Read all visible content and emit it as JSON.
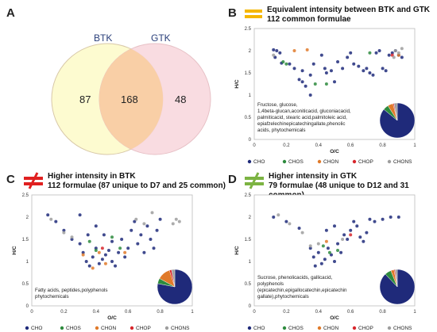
{
  "panelA": {
    "label": "A",
    "venn": {
      "left_name": "BTK",
      "right_name": "GTK",
      "left_only": "87",
      "both": "168",
      "right_only": "48",
      "colors": {
        "left": "#fdfbd0",
        "right": "#f9d6dc",
        "overlap": "#f9cfa6",
        "edge": "#d8b7a0"
      }
    }
  },
  "panelB": {
    "label": "B",
    "title": "Equivalent intensity between BTK and GTK",
    "subtitle": "112 common formulae",
    "icon": "equal-sign-icon",
    "icon_color": "#f5b700",
    "annotation": "Fructose, glucose, 1,4beta-glucan,aconiticacid, gluconiacacid, palmiticacid, stearic acid,palmitoleic acid, epiafzelechinepicatechingallate,phenolic acids, phytochemicals",
    "pie": [
      0.86,
      0.05,
      0.05,
      0.01,
      0.03
    ]
  },
  "panelC": {
    "label": "C",
    "title": "Higher intensity in BTK",
    "subtitle": "112 formulae (87 unique to D7 and 25 common)",
    "icon": "not-equal-sign-icon",
    "icon_color": "#e02020",
    "annotation": "Fatty acids, peptides,polyphenols phytochemicals",
    "pie": [
      0.78,
      0.05,
      0.12,
      0.02,
      0.03
    ]
  },
  "panelD": {
    "label": "D",
    "title": "Higher intensity in GTK",
    "subtitle": "79 formulae (48 unique to D12 and 31 common)",
    "icon": "not-equal-sign-icon",
    "icon_color": "#7cb342",
    "annotation": "Sucrose, phenolicacids, gallicacid, polyphenols (epicatechin,epigallocatechin,epicatechin gallate),phytochemicals",
    "pie": [
      0.88,
      0.06,
      0.03,
      0.01,
      0.02
    ]
  },
  "axes": {
    "xlabel": "O/C",
    "ylabel": "H/C",
    "xticks": [
      "0",
      "0.2",
      "0.4",
      "0.6",
      "0.8",
      "1"
    ],
    "yticks": [
      "0",
      "0.5",
      "1",
      "1.5",
      "2",
      "2.5"
    ],
    "xlim": [
      0,
      1
    ],
    "ylim": [
      0,
      2.5
    ]
  },
  "legend": [
    {
      "name": "CHO",
      "color": "#1f2a7a"
    },
    {
      "name": "CHOS",
      "color": "#2e8b3e"
    },
    {
      "name": "CHON",
      "color": "#e07a2a"
    },
    {
      "name": "CHOP",
      "color": "#d8272d"
    },
    {
      "name": "CHONS",
      "color": "#9e9e9e"
    }
  ],
  "chart_data": [
    {
      "type": "scatter",
      "title": "Equivalent intensity between BTK and GTK",
      "xlabel": "O/C",
      "ylabel": "H/C",
      "xlim": [
        0,
        1
      ],
      "ylim": [
        0,
        2.5
      ],
      "series": [
        {
          "name": "CHO",
          "points": [
            [
              0.12,
              2.02
            ],
            [
              0.14,
              2.0
            ],
            [
              0.16,
              1.95
            ],
            [
              0.13,
              1.85
            ],
            [
              0.17,
              1.72
            ],
            [
              0.22,
              1.7
            ],
            [
              0.25,
              1.6
            ],
            [
              0.3,
              1.55
            ],
            [
              0.28,
              1.35
            ],
            [
              0.32,
              1.2
            ],
            [
              0.35,
              1.45
            ],
            [
              0.37,
              1.7
            ],
            [
              0.42,
              1.9
            ],
            [
              0.44,
              1.6
            ],
            [
              0.45,
              1.5
            ],
            [
              0.48,
              1.55
            ],
            [
              0.5,
              1.3
            ],
            [
              0.52,
              1.75
            ],
            [
              0.55,
              1.6
            ],
            [
              0.58,
              1.85
            ],
            [
              0.6,
              1.95
            ],
            [
              0.62,
              1.7
            ],
            [
              0.65,
              1.65
            ],
            [
              0.68,
              1.55
            ],
            [
              0.7,
              1.6
            ],
            [
              0.72,
              1.5
            ],
            [
              0.74,
              1.45
            ],
            [
              0.76,
              1.95
            ],
            [
              0.78,
              2.0
            ],
            [
              0.8,
              1.6
            ],
            [
              0.82,
              1.55
            ],
            [
              0.84,
              1.9
            ],
            [
              0.86,
              1.95
            ],
            [
              0.88,
              2.0
            ],
            [
              0.9,
              1.9
            ],
            [
              0.92,
              1.85
            ],
            [
              0.3,
              1.3
            ],
            [
              0.35,
              1.0
            ]
          ]
        },
        {
          "name": "CHOS",
          "points": [
            [
              0.18,
              1.75
            ],
            [
              0.2,
              1.7
            ],
            [
              0.38,
              1.25
            ],
            [
              0.45,
              1.25
            ],
            [
              0.72,
              1.95
            ]
          ]
        },
        {
          "name": "CHON",
          "points": [
            [
              0.25,
              2.0
            ],
            [
              0.33,
              2.02
            ],
            [
              0.9,
              1.9
            ]
          ]
        },
        {
          "name": "CHOP",
          "points": [
            [
              0.86,
              1.9
            ]
          ]
        },
        {
          "name": "CHONS",
          "points": [
            [
              0.12,
              1.9
            ],
            [
              0.88,
              2.0
            ],
            [
              0.9,
              1.95
            ],
            [
              0.92,
              2.05
            ],
            [
              0.87,
              1.85
            ]
          ]
        }
      ]
    },
    {
      "type": "scatter",
      "title": "Higher intensity in BTK",
      "xlabel": "O/C",
      "ylabel": "H/C",
      "xlim": [
        0,
        1
      ],
      "ylim": [
        0,
        2.5
      ],
      "series": [
        {
          "name": "CHO",
          "points": [
            [
              0.1,
              2.05
            ],
            [
              0.15,
              1.9
            ],
            [
              0.2,
              1.7
            ],
            [
              0.25,
              1.5
            ],
            [
              0.3,
              1.4
            ],
            [
              0.32,
              1.2
            ],
            [
              0.34,
              1.0
            ],
            [
              0.36,
              0.9
            ],
            [
              0.38,
              1.1
            ],
            [
              0.4,
              1.3
            ],
            [
              0.42,
              0.95
            ],
            [
              0.44,
              1.05
            ],
            [
              0.46,
              1.15
            ],
            [
              0.48,
              1.25
            ],
            [
              0.5,
              1.0
            ],
            [
              0.52,
              0.9
            ],
            [
              0.54,
              1.2
            ],
            [
              0.56,
              1.5
            ],
            [
              0.58,
              1.1
            ],
            [
              0.6,
              1.3
            ],
            [
              0.62,
              1.7
            ],
            [
              0.64,
              1.9
            ],
            [
              0.66,
              1.4
            ],
            [
              0.68,
              1.6
            ],
            [
              0.7,
              1.2
            ],
            [
              0.72,
              1.8
            ],
            [
              0.74,
              1.5
            ],
            [
              0.76,
              1.3
            ],
            [
              0.78,
              1.7
            ],
            [
              0.8,
              1.95
            ],
            [
              0.3,
              2.05
            ],
            [
              0.35,
              1.6
            ],
            [
              0.4,
              1.8
            ],
            [
              0.45,
              1.6
            ],
            [
              0.5,
              1.45
            ]
          ]
        },
        {
          "name": "CHOS",
          "points": [
            [
              0.36,
              1.45
            ],
            [
              0.5,
              1.55
            ],
            [
              0.4,
              1.25
            ],
            [
              0.55,
              1.3
            ]
          ]
        },
        {
          "name": "CHON",
          "points": [
            [
              0.32,
              1.15
            ],
            [
              0.42,
              1.2
            ],
            [
              0.46,
              0.95
            ],
            [
              0.58,
              1.2
            ],
            [
              0.38,
              0.85
            ]
          ]
        },
        {
          "name": "CHOP",
          "points": [
            [
              0.44,
              1.3
            ]
          ]
        },
        {
          "name": "CHONS",
          "points": [
            [
              0.12,
              1.95
            ],
            [
              0.2,
              1.65
            ],
            [
              0.25,
              1.55
            ],
            [
              0.65,
              1.95
            ],
            [
              0.7,
              1.85
            ],
            [
              0.75,
              2.1
            ],
            [
              0.9,
              1.95
            ],
            [
              0.88,
              1.85
            ],
            [
              0.92,
              1.9
            ]
          ]
        }
      ]
    },
    {
      "type": "scatter",
      "title": "Higher intensity in GTK",
      "xlabel": "O/C",
      "ylabel": "H/C",
      "xlim": [
        0,
        1
      ],
      "ylim": [
        0,
        2.5
      ],
      "series": [
        {
          "name": "CHO",
          "points": [
            [
              0.12,
              2.0
            ],
            [
              0.2,
              1.9
            ],
            [
              0.28,
              1.75
            ],
            [
              0.35,
              1.3
            ],
            [
              0.37,
              1.1
            ],
            [
              0.4,
              1.2
            ],
            [
              0.42,
              0.95
            ],
            [
              0.44,
              1.05
            ],
            [
              0.46,
              1.3
            ],
            [
              0.48,
              1.15
            ],
            [
              0.5,
              1.0
            ],
            [
              0.52,
              1.4
            ],
            [
              0.54,
              1.2
            ],
            [
              0.56,
              1.6
            ],
            [
              0.58,
              1.5
            ],
            [
              0.6,
              1.7
            ],
            [
              0.62,
              1.9
            ],
            [
              0.64,
              1.8
            ],
            [
              0.66,
              1.55
            ],
            [
              0.68,
              1.45
            ],
            [
              0.7,
              1.65
            ],
            [
              0.72,
              1.95
            ],
            [
              0.75,
              1.9
            ],
            [
              0.8,
              1.95
            ],
            [
              0.85,
              2.0
            ],
            [
              0.9,
              2.0
            ],
            [
              0.45,
              1.7
            ],
            [
              0.5,
              1.8
            ],
            [
              0.38,
              0.9
            ]
          ]
        },
        {
          "name": "CHOS",
          "points": [
            [
              0.43,
              1.35
            ],
            [
              0.47,
              1.2
            ],
            [
              0.52,
              1.25
            ]
          ]
        },
        {
          "name": "CHON",
          "points": [
            [
              0.45,
              1.45
            ]
          ]
        },
        {
          "name": "CHOP",
          "points": [
            [
              0.6,
              1.6
            ]
          ]
        },
        {
          "name": "CHONS",
          "points": [
            [
              0.15,
              2.05
            ],
            [
              0.22,
              1.85
            ],
            [
              0.3,
              1.65
            ],
            [
              0.35,
              1.35
            ],
            [
              0.4,
              1.4
            ],
            [
              0.55,
              1.5
            ]
          ]
        }
      ]
    }
  ]
}
